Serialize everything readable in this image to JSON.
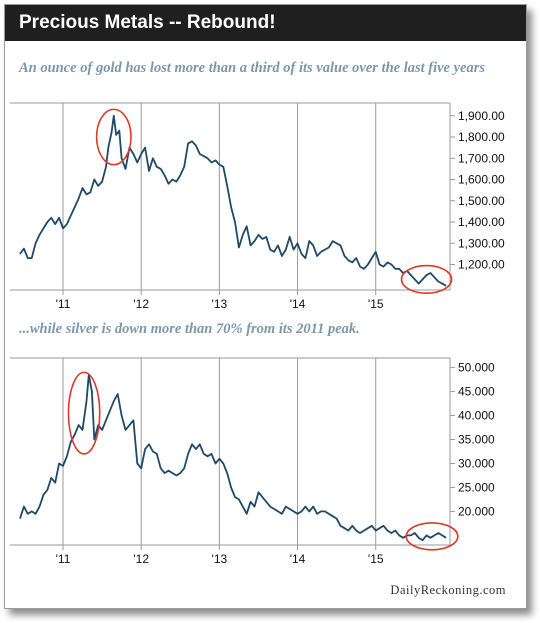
{
  "title": "Precious Metals -- Rebound!",
  "source": "DailyReckoning.com",
  "colors": {
    "line": "#1d4a68",
    "highlight": "#d93a2b",
    "title_bg": "#1f1f1f",
    "subtitle": "#7b98ab",
    "axis": "#9a9a9a"
  },
  "chart_data": [
    {
      "type": "line",
      "title": "An ounce of gold has lost more than a third of its value over the last five years",
      "series": [
        {
          "x": [
            2010.45,
            2010.5,
            2010.55,
            2010.6,
            2010.65,
            2010.7,
            2010.75,
            2010.8,
            2010.85,
            2010.9,
            2010.95,
            2011.0,
            2011.05,
            2011.1,
            2011.15,
            2011.2,
            2011.25,
            2011.3,
            2011.35,
            2011.4,
            2011.45,
            2011.5,
            2011.55,
            2011.58,
            2011.62,
            2011.65,
            2011.68,
            2011.72,
            2011.75,
            2011.8,
            2011.85,
            2011.9,
            2011.95,
            2012.0,
            2012.05,
            2012.1,
            2012.15,
            2012.2,
            2012.25,
            2012.3,
            2012.35,
            2012.4,
            2012.45,
            2012.5,
            2012.55,
            2012.6,
            2012.65,
            2012.7,
            2012.75,
            2012.8,
            2012.85,
            2012.9,
            2012.95,
            2013.0,
            2013.05,
            2013.1,
            2013.15,
            2013.2,
            2013.25,
            2013.3,
            2013.35,
            2013.4,
            2013.45,
            2013.5,
            2013.55,
            2013.6,
            2013.65,
            2013.7,
            2013.75,
            2013.8,
            2013.85,
            2013.9,
            2013.95,
            2014.0,
            2014.05,
            2014.1,
            2014.15,
            2014.2,
            2014.25,
            2014.3,
            2014.35,
            2014.4,
            2014.45,
            2014.5,
            2014.55,
            2014.6,
            2014.65,
            2014.7,
            2014.75,
            2014.8,
            2014.85,
            2014.9,
            2014.95,
            2015.0,
            2015.05,
            2015.1,
            2015.15,
            2015.2,
            2015.25,
            2015.3,
            2015.35,
            2015.4,
            2015.45,
            2015.5,
            2015.55,
            2015.6,
            2015.65,
            2015.7,
            2015.75,
            2015.8,
            2015.85,
            2015.9
          ],
          "y": [
            1250,
            1275,
            1230,
            1230,
            1300,
            1340,
            1370,
            1400,
            1420,
            1390,
            1420,
            1370,
            1390,
            1430,
            1470,
            1510,
            1560,
            1530,
            1540,
            1600,
            1570,
            1590,
            1660,
            1750,
            1820,
            1900,
            1810,
            1830,
            1700,
            1650,
            1750,
            1720,
            1680,
            1720,
            1750,
            1640,
            1700,
            1660,
            1650,
            1620,
            1580,
            1600,
            1590,
            1620,
            1660,
            1770,
            1780,
            1760,
            1720,
            1710,
            1700,
            1680,
            1690,
            1670,
            1660,
            1570,
            1470,
            1400,
            1280,
            1340,
            1380,
            1290,
            1310,
            1340,
            1320,
            1330,
            1270,
            1260,
            1290,
            1240,
            1270,
            1330,
            1270,
            1300,
            1250,
            1230,
            1310,
            1290,
            1240,
            1260,
            1270,
            1280,
            1310,
            1300,
            1290,
            1240,
            1220,
            1210,
            1230,
            1190,
            1180,
            1200,
            1230,
            1260,
            1200,
            1190,
            1210,
            1200,
            1180,
            1180,
            1160,
            1170,
            1150,
            1130,
            1110,
            1130,
            1150,
            1160,
            1140,
            1120,
            1110,
            1100
          ]
        }
      ],
      "xlim": [
        2010.45,
        2015.95
      ],
      "ylim": [
        1080,
        1960
      ],
      "x_ticks": [
        {
          "value": 2011,
          "label": "'11"
        },
        {
          "value": 2012,
          "label": "'12"
        },
        {
          "value": 2013,
          "label": "'13"
        },
        {
          "value": 2014,
          "label": "'14"
        },
        {
          "value": 2015,
          "label": "'15"
        }
      ],
      "y_ticks": [
        {
          "value": 1900,
          "label": "1,900.00"
        },
        {
          "value": 1800,
          "label": "1,800.00"
        },
        {
          "value": 1700,
          "label": "1,700.00"
        },
        {
          "value": 1600,
          "label": "1,600.00"
        },
        {
          "value": 1500,
          "label": "1,500.00"
        },
        {
          "value": 1400,
          "label": "1,400.00"
        },
        {
          "value": 1300,
          "label": "1,300.00"
        },
        {
          "value": 1200,
          "label": "1,200.00"
        }
      ],
      "highlights": [
        {
          "x": 2011.65,
          "y": 1800,
          "rx": 0.22,
          "ry": 130
        },
        {
          "x": 2015.65,
          "y": 1130,
          "rx": 0.32,
          "ry": 65
        }
      ]
    },
    {
      "type": "line",
      "title": "...while silver is down more than 70% from its 2011 peak.",
      "series": [
        {
          "x": [
            2010.45,
            2010.5,
            2010.55,
            2010.6,
            2010.65,
            2010.7,
            2010.75,
            2010.8,
            2010.85,
            2010.9,
            2010.95,
            2011.0,
            2011.05,
            2011.1,
            2011.15,
            2011.2,
            2011.25,
            2011.3,
            2011.33,
            2011.37,
            2011.4,
            2011.45,
            2011.5,
            2011.55,
            2011.6,
            2011.65,
            2011.7,
            2011.75,
            2011.8,
            2011.85,
            2011.9,
            2011.95,
            2012.0,
            2012.05,
            2012.1,
            2012.15,
            2012.2,
            2012.25,
            2012.3,
            2012.35,
            2012.4,
            2012.45,
            2012.5,
            2012.55,
            2012.6,
            2012.65,
            2012.7,
            2012.75,
            2012.8,
            2012.85,
            2012.9,
            2012.95,
            2013.0,
            2013.05,
            2013.1,
            2013.15,
            2013.2,
            2013.25,
            2013.3,
            2013.35,
            2013.4,
            2013.45,
            2013.5,
            2013.55,
            2013.6,
            2013.65,
            2013.7,
            2013.75,
            2013.8,
            2013.85,
            2013.9,
            2013.95,
            2014.0,
            2014.05,
            2014.1,
            2014.15,
            2014.2,
            2014.25,
            2014.3,
            2014.35,
            2014.4,
            2014.45,
            2014.5,
            2014.55,
            2014.6,
            2014.65,
            2014.7,
            2014.75,
            2014.8,
            2014.85,
            2014.9,
            2014.95,
            2015.0,
            2015.05,
            2015.1,
            2015.15,
            2015.2,
            2015.25,
            2015.3,
            2015.35,
            2015.4,
            2015.45,
            2015.5,
            2015.55,
            2015.6,
            2015.65,
            2015.7,
            2015.75,
            2015.8,
            2015.85,
            2015.9
          ],
          "y": [
            18.5,
            21,
            19.5,
            20,
            19.5,
            21,
            23.5,
            24.5,
            27,
            26,
            30,
            29.5,
            31.5,
            34.5,
            36,
            38,
            37,
            43,
            48.5,
            45,
            35,
            38,
            37,
            39,
            41,
            43,
            44.5,
            40,
            37,
            38,
            39,
            30,
            29,
            33,
            34,
            32.5,
            32,
            29,
            28,
            28.5,
            28,
            27.5,
            28,
            29,
            32,
            34,
            33,
            34,
            32,
            31.5,
            32,
            30,
            31,
            30,
            28,
            25,
            23,
            22.5,
            21,
            19.5,
            22,
            21,
            24,
            23,
            22,
            21,
            20.5,
            20,
            19.5,
            21,
            20.5,
            20,
            19.5,
            20,
            21,
            20,
            21,
            19.5,
            20,
            20,
            19.5,
            19,
            18.5,
            17,
            16.5,
            16,
            17,
            16,
            15.5,
            16,
            16.5,
            17,
            16,
            16.5,
            17,
            16,
            15.5,
            16,
            15,
            14.5,
            15,
            15,
            15.5,
            14.5,
            14,
            15,
            14.5,
            15,
            15.5,
            15,
            14.5
          ]
        }
      ],
      "xlim": [
        2010.45,
        2015.95
      ],
      "ylim": [
        13,
        52
      ],
      "x_ticks": [
        {
          "value": 2011,
          "label": "'11"
        },
        {
          "value": 2012,
          "label": "'12"
        },
        {
          "value": 2013,
          "label": "'13"
        },
        {
          "value": 2014,
          "label": "'14"
        },
        {
          "value": 2015,
          "label": "'15"
        }
      ],
      "y_ticks": [
        {
          "value": 50,
          "label": "50.000"
        },
        {
          "value": 45,
          "label": "45.000"
        },
        {
          "value": 40,
          "label": "40.000"
        },
        {
          "value": 35,
          "label": "35.000"
        },
        {
          "value": 30,
          "label": "30.000"
        },
        {
          "value": 25,
          "label": "25.000"
        },
        {
          "value": 20,
          "label": "20.000"
        }
      ],
      "highlights": [
        {
          "x": 2011.27,
          "y": 40.5,
          "rx": 0.2,
          "ry": 8.5
        },
        {
          "x": 2015.72,
          "y": 14.8,
          "rx": 0.33,
          "ry": 2.8
        }
      ]
    }
  ]
}
